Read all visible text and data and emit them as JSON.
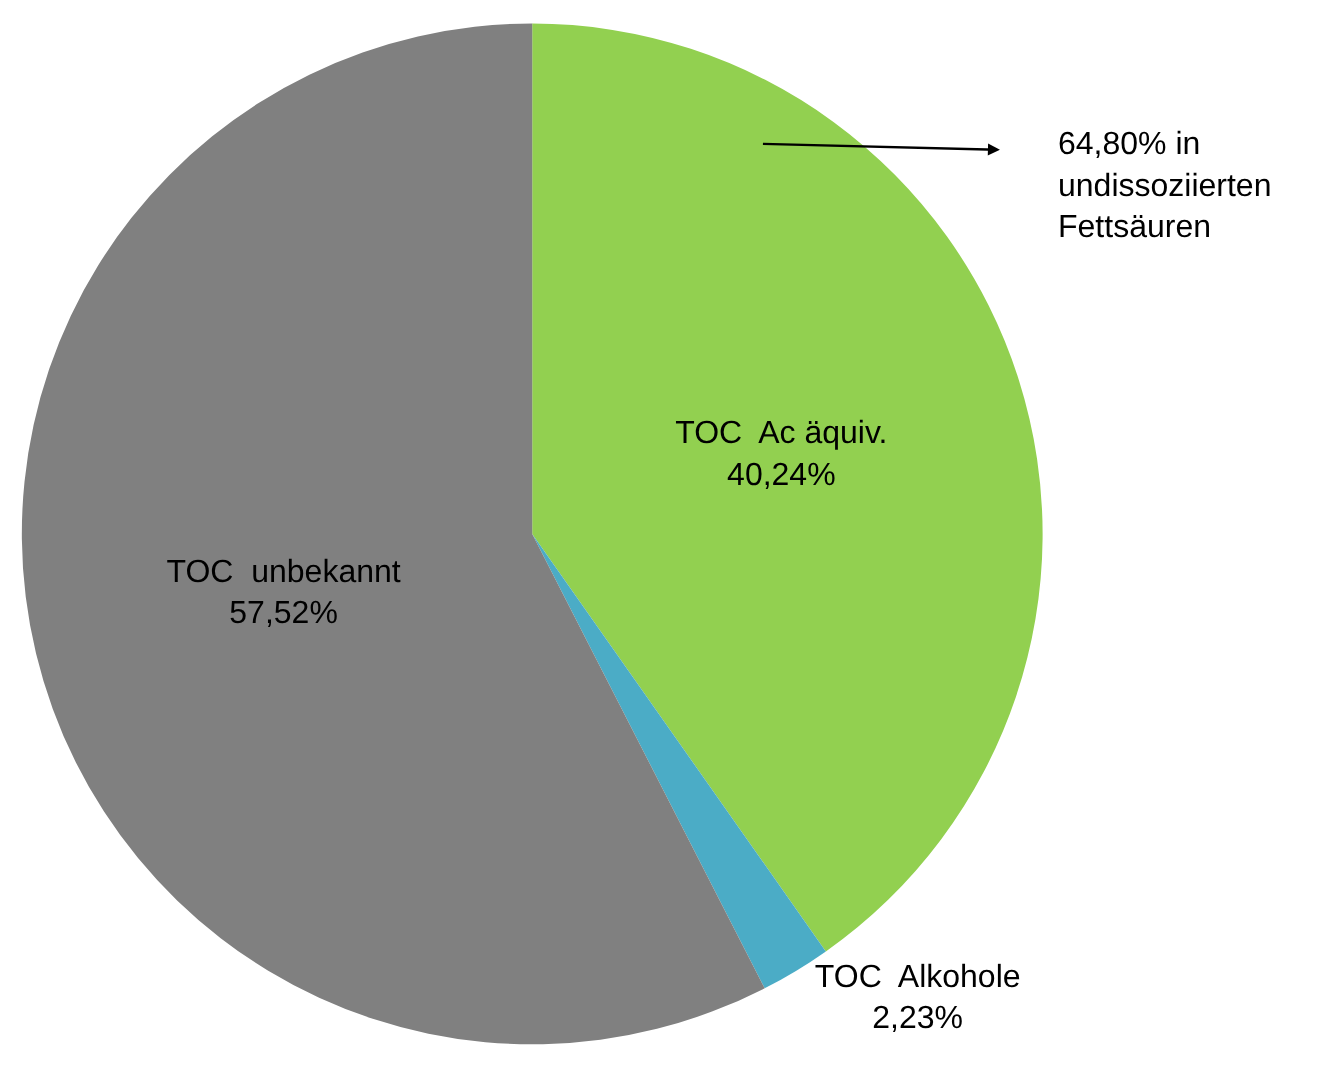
{
  "chart_data": {
    "type": "pie",
    "categories": [
      "TOC  Ac äquiv.",
      "TOC  Alkohole",
      "TOC  unbekannt"
    ],
    "values": [
      40.24,
      2.23,
      57.52
    ],
    "colors": [
      "#92d050",
      "#4bacc6",
      "#808080"
    ],
    "value_labels": [
      "40,24%",
      "2,23%",
      "57,52%"
    ],
    "annotations": [
      "64,80% in\nundissoziierten\nFettsäuren"
    ]
  }
}
